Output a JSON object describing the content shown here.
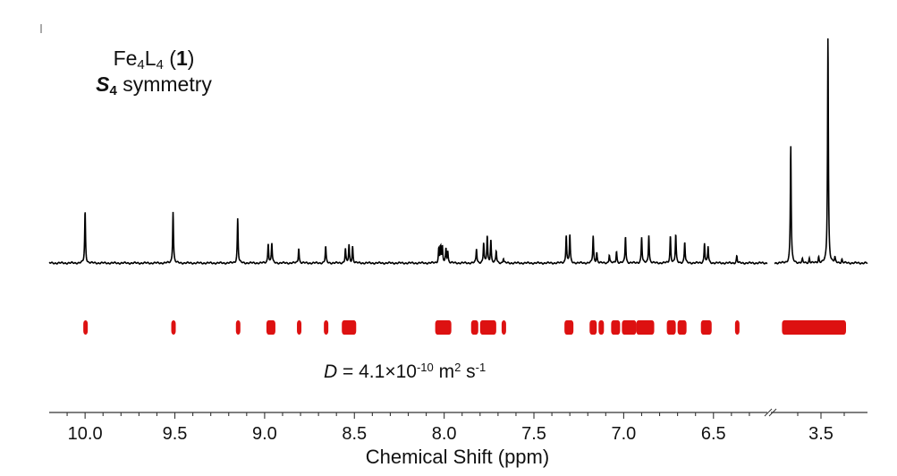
{
  "chart_data": {
    "type": "line",
    "title": {
      "compound": {
        "base1": "Fe",
        "sub1": "4",
        "base2": "L",
        "sub2": "4",
        "ref_open": " (",
        "ref_num": "1",
        "ref_close": ")"
      },
      "symmetry": {
        "symbol": "S",
        "sub": "4",
        "text": " symmetry"
      }
    },
    "xlabel": "Chemical Shift (ppm)",
    "x_axis": {
      "reversed": true,
      "broken": true,
      "segment1_range": [
        10.2,
        6.2
      ],
      "segment2_range": [
        3.7,
        3.3
      ],
      "ticks": [
        10.0,
        9.5,
        9.0,
        8.5,
        8.0,
        7.5,
        7.0,
        6.5,
        3.5
      ],
      "tick_labels": [
        "10.0",
        "9.5",
        "9.0",
        "8.5",
        "8.0",
        "7.5",
        "7.0",
        "6.5",
        "3.5"
      ]
    },
    "series": [
      {
        "kind": "1H NMR spectrum",
        "color": "#000000",
        "peaks": [
          {
            "x": 10.0,
            "h": 0.44
          },
          {
            "x": 9.51,
            "h": 0.44
          },
          {
            "x": 9.15,
            "h": 0.38
          },
          {
            "x": 8.98,
            "h": 0.17
          },
          {
            "x": 8.96,
            "h": 0.17
          },
          {
            "x": 8.81,
            "h": 0.13
          },
          {
            "x": 8.66,
            "h": 0.14
          },
          {
            "x": 8.55,
            "h": 0.12
          },
          {
            "x": 8.53,
            "h": 0.15
          },
          {
            "x": 8.51,
            "h": 0.14
          },
          {
            "x": 8.03,
            "h": 0.12
          },
          {
            "x": 8.02,
            "h": 0.14
          },
          {
            "x": 8.01,
            "h": 0.13
          },
          {
            "x": 7.99,
            "h": 0.12
          },
          {
            "x": 7.98,
            "h": 0.1
          },
          {
            "x": 7.82,
            "h": 0.12
          },
          {
            "x": 7.78,
            "h": 0.17
          },
          {
            "x": 7.76,
            "h": 0.23
          },
          {
            "x": 7.74,
            "h": 0.2
          },
          {
            "x": 7.71,
            "h": 0.1
          },
          {
            "x": 7.67,
            "h": 0.04
          },
          {
            "x": 7.32,
            "h": 0.24
          },
          {
            "x": 7.3,
            "h": 0.24
          },
          {
            "x": 7.17,
            "h": 0.23
          },
          {
            "x": 7.15,
            "h": 0.09
          },
          {
            "x": 7.08,
            "h": 0.07
          },
          {
            "x": 7.04,
            "h": 0.1
          },
          {
            "x": 6.99,
            "h": 0.23
          },
          {
            "x": 6.9,
            "h": 0.22
          },
          {
            "x": 6.86,
            "h": 0.24
          },
          {
            "x": 6.74,
            "h": 0.23
          },
          {
            "x": 6.71,
            "h": 0.24
          },
          {
            "x": 6.66,
            "h": 0.18
          },
          {
            "x": 6.55,
            "h": 0.17
          },
          {
            "x": 6.53,
            "h": 0.14
          },
          {
            "x": 6.37,
            "h": 0.06
          },
          {
            "x": 3.63,
            "h": 1.0
          },
          {
            "x": 3.47,
            "h": 1.92
          },
          {
            "x": 3.58,
            "h": 0.03
          },
          {
            "x": 3.55,
            "h": 0.04
          },
          {
            "x": 3.51,
            "h": 0.05
          },
          {
            "x": 3.44,
            "h": 0.04
          },
          {
            "x": 3.41,
            "h": 0.03
          }
        ]
      },
      {
        "kind": "DOSY diffusion traces",
        "color": "#dd1111",
        "marks": [
          [
            10.0,
            10.0
          ],
          [
            9.51,
            9.51
          ],
          [
            9.15,
            9.15
          ],
          [
            8.98,
            8.95
          ],
          [
            8.81,
            8.81
          ],
          [
            8.66,
            8.66
          ],
          [
            8.56,
            8.5
          ],
          [
            8.04,
            7.97
          ],
          [
            7.84,
            7.82
          ],
          [
            7.79,
            7.72
          ],
          [
            7.67,
            7.67
          ],
          [
            7.32,
            7.29
          ],
          [
            7.18,
            7.16
          ],
          [
            7.13,
            7.12
          ],
          [
            7.06,
            7.03
          ],
          [
            7.0,
            6.94
          ],
          [
            6.92,
            6.84
          ],
          [
            6.75,
            6.72
          ],
          [
            6.69,
            6.66
          ],
          [
            6.56,
            6.52
          ],
          [
            6.37,
            6.37
          ],
          [
            3.66,
            3.4
          ]
        ]
      }
    ],
    "annotation": {
      "symbol": "D",
      "eq": " = 4.1",
      "times": "×",
      "base": "10",
      "exp": "-10",
      "unit_m": " m",
      "unit_m_exp": "2",
      "unit_s": " s",
      "unit_s_exp": "-1"
    }
  }
}
